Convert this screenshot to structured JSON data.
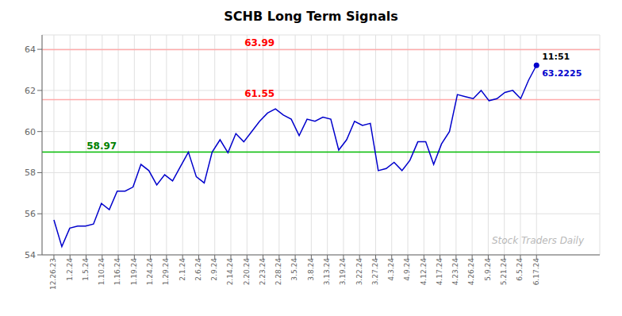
{
  "chart_data": {
    "type": "line",
    "title": "SCHB Long Term Signals",
    "watermark": "Stock Traders Daily",
    "color": "#0000cc",
    "grid": true,
    "xlim": [
      -1.5,
      69
    ],
    "xticks": [
      {
        "value": 0,
        "label": "12.26.23"
      },
      {
        "value": 2.0333333333,
        "label": "1.2.24"
      },
      {
        "value": 4.0666666667,
        "label": "1.5.24"
      },
      {
        "value": 6.1,
        "label": "1.10.24"
      },
      {
        "value": 8.1333333333,
        "label": "1.16.24"
      },
      {
        "value": 10.1666666667,
        "label": "1.19.24"
      },
      {
        "value": 12.2,
        "label": "1.24.24"
      },
      {
        "value": 14.2333333333,
        "label": "1.29.24"
      },
      {
        "value": 16.2666666667,
        "label": "2.1.24"
      },
      {
        "value": 18.3,
        "label": "2.6.24"
      },
      {
        "value": 20.3333333333,
        "label": "2.9.24"
      },
      {
        "value": 22.3666666667,
        "label": "2.14.24"
      },
      {
        "value": 24.4,
        "label": "2.20.24"
      },
      {
        "value": 26.4333333333,
        "label": "2.23.24"
      },
      {
        "value": 28.4666666667,
        "label": "2.28.24"
      },
      {
        "value": 30.5,
        "label": "3.5.24"
      },
      {
        "value": 32.5333333333,
        "label": "3.8.24"
      },
      {
        "value": 34.5666666667,
        "label": "3.13.24"
      },
      {
        "value": 36.6,
        "label": "3.19.24"
      },
      {
        "value": 38.6333333333,
        "label": "3.22.24"
      },
      {
        "value": 40.6666666667,
        "label": "3.27.24"
      },
      {
        "value": 42.7,
        "label": "4.3.24"
      },
      {
        "value": 44.7333333333,
        "label": "4.9.24"
      },
      {
        "value": 46.7666666667,
        "label": "4.12.24"
      },
      {
        "value": 48.8,
        "label": "4.17.24"
      },
      {
        "value": 50.8333333333,
        "label": "4.23.24"
      },
      {
        "value": 52.8666666667,
        "label": "4.26.24"
      },
      {
        "value": 54.9,
        "label": "5.9.24"
      },
      {
        "value": 56.9333333333,
        "label": "5.21.24"
      },
      {
        "value": 58.9666666667,
        "label": "6.5.24"
      },
      {
        "value": 61,
        "label": "6.17.24"
      }
    ],
    "ylim": [
      54,
      64.7
    ],
    "yticks": [
      54,
      56,
      58,
      60,
      62,
      64
    ],
    "values": [
      55.7,
      54.4,
      55.3,
      55.4,
      55.4,
      55.5,
      56.5,
      56.2,
      57.1,
      57.1,
      57.3,
      58.4,
      58.1,
      57.4,
      57.9,
      57.6,
      58.3,
      59.0,
      57.8,
      57.5,
      59.0,
      59.6,
      58.97,
      59.9,
      59.5,
      60.0,
      60.5,
      60.9,
      61.1,
      60.8,
      60.6,
      59.8,
      60.6,
      60.5,
      60.7,
      60.6,
      59.1,
      59.6,
      60.5,
      60.3,
      60.4,
      58.1,
      58.2,
      58.5,
      58.1,
      58.6,
      59.5,
      59.5,
      58.4,
      59.4,
      60.0,
      61.8,
      61.7,
      61.6,
      62.0,
      61.5,
      61.6,
      61.9,
      62.0,
      61.6,
      62.5,
      63.2225
    ],
    "hlines": [
      {
        "value": 63.99,
        "color": "#ffaaaa",
        "label": "63.99",
        "label_color": "red"
      },
      {
        "value": 61.55,
        "color": "#ffaaaa",
        "label": "61.55",
        "label_color": "red"
      },
      {
        "value": 59.0,
        "color": "#00bb00",
        "label": "58.97",
        "label_color": "green"
      }
    ],
    "annotations": [
      {
        "text": "11:51",
        "color": "black"
      },
      {
        "text": "63.2225",
        "color": "#0000cc"
      }
    ]
  }
}
